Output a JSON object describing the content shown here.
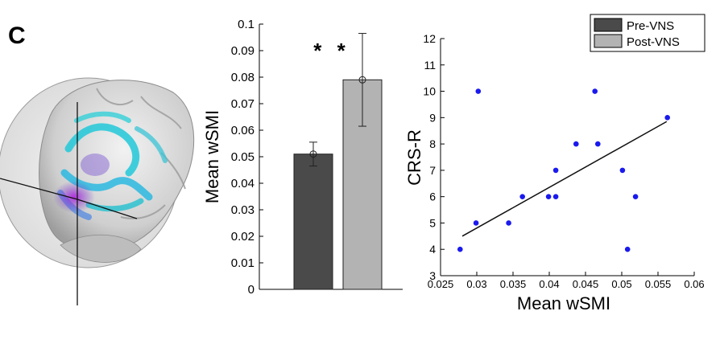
{
  "panel_label": "C",
  "colors": {
    "pre": "#4a4a4a",
    "post": "#b3b3b3",
    "points": "#1a1aee",
    "brain_cortex": "#d9d9d9",
    "activation_cyan": "#22c8d8",
    "activation_purple": "#8a3cc8"
  },
  "chart_data": [
    {
      "type": "bar",
      "categories": [
        "Pre-VNS",
        "Post-VNS"
      ],
      "values": [
        0.051,
        0.079
      ],
      "error": [
        0.0045,
        0.0175
      ],
      "ylabel": "Mean wSMI",
      "xlabel": "",
      "ylim": [
        0,
        0.1
      ],
      "yticks": [
        0,
        0.01,
        0.02,
        0.03,
        0.04,
        0.05,
        0.06,
        0.07,
        0.08,
        0.09,
        0.1
      ],
      "ytick_labels": [
        "0",
        "0.01",
        "0.02",
        "0.03",
        "0.04",
        "0.05",
        "0.06",
        "0.07",
        "0.08",
        "0.09",
        "0.1"
      ],
      "annotation": "* *",
      "legend": {
        "entries": [
          "Pre-VNS",
          "Post-VNS"
        ],
        "placement": "top-right"
      },
      "grid": false
    },
    {
      "type": "scatter",
      "xlabel": "Mean wSMI",
      "ylabel": "CRS-R",
      "xlim": [
        0.025,
        0.06
      ],
      "ylim": [
        3,
        12
      ],
      "xticks": [
        0.025,
        0.03,
        0.035,
        0.04,
        0.045,
        0.05,
        0.055,
        0.06
      ],
      "xtick_labels": [
        "0.025",
        "0.03",
        "0.035",
        "0.04",
        "0.045",
        "0.05",
        "0.055",
        "0.06"
      ],
      "yticks": [
        3,
        4,
        5,
        6,
        7,
        8,
        9,
        10,
        11,
        12
      ],
      "ytick_labels": [
        "3",
        "4",
        "5",
        "6",
        "7",
        "8",
        "9",
        "10",
        "11",
        "12"
      ],
      "points": [
        {
          "x": 0.0277,
          "y": 4
        },
        {
          "x": 0.0299,
          "y": 5
        },
        {
          "x": 0.0302,
          "y": 10
        },
        {
          "x": 0.0344,
          "y": 5
        },
        {
          "x": 0.0363,
          "y": 6
        },
        {
          "x": 0.0399,
          "y": 6
        },
        {
          "x": 0.0409,
          "y": 7
        },
        {
          "x": 0.0409,
          "y": 6
        },
        {
          "x": 0.0437,
          "y": 8
        },
        {
          "x": 0.0463,
          "y": 10
        },
        {
          "x": 0.0467,
          "y": 8
        },
        {
          "x": 0.0501,
          "y": 7
        },
        {
          "x": 0.0508,
          "y": 4
        },
        {
          "x": 0.0519,
          "y": 6
        },
        {
          "x": 0.0563,
          "y": 9
        }
      ],
      "fit_line": {
        "x": [
          0.028,
          0.0562
        ],
        "y": [
          4.5,
          8.85
        ]
      },
      "grid": false
    }
  ]
}
